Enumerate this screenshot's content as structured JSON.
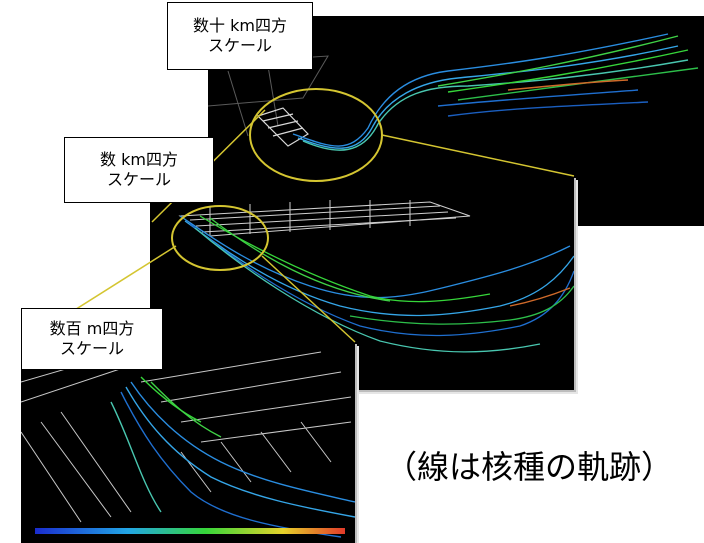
{
  "labels": {
    "large": {
      "line1": "数十 km四方",
      "line2": "スケール"
    },
    "medium": {
      "line1": "数 km四方",
      "line2": "スケール"
    },
    "small": {
      "line1": "数百 m四方",
      "line2": "スケール"
    }
  },
  "caption": "（線は核種の軌跡）",
  "colors": {
    "highlight": "#d4c531",
    "trail_blue": "#2a8de0",
    "trail_green": "#36d63a",
    "background": "#000000"
  }
}
